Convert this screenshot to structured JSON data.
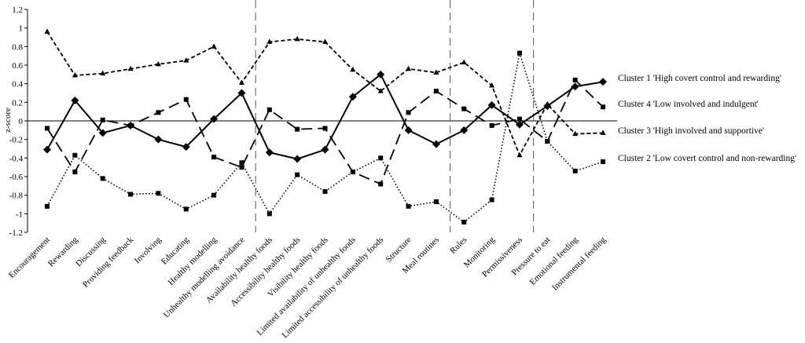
{
  "chart_data": {
    "type": "line",
    "ylabel": "z-score",
    "ylim": [
      -1.2,
      1.2
    ],
    "yticks": [
      1.2,
      1,
      0.8,
      0.6,
      0.4,
      0.2,
      0,
      -0.2,
      -0.4,
      -0.6,
      -0.8,
      -1,
      -1.2
    ],
    "categories": [
      "Encouragement",
      "Rewarding",
      "Discussing",
      "Providing feedback",
      "Involving",
      "Educating",
      "Healthy modelling",
      "Unhealthy modelling avoidance",
      "Availability healthy foods",
      "Accessibility healthy foods",
      "Visibility healthy foods",
      "Limited availability of unhealthy foods",
      "Limited accessibility of unhealthy foods",
      "Structure",
      "Meal routines",
      "Rules",
      "Monitoring",
      "Permissiveness",
      "Pressure to eat",
      "Emotional feeding",
      "Instrumental feeding"
    ],
    "group_separators_after": [
      "Unhealthy modelling avoidance",
      "Meal routines",
      "Permissiveness"
    ],
    "series": [
      {
        "name": "Cluster 1 'High covert control and rewarding'",
        "style": "solid",
        "marker": "diamond",
        "values": [
          -0.31,
          0.22,
          -0.13,
          -0.05,
          -0.2,
          -0.28,
          0.02,
          0.3,
          -0.34,
          -0.41,
          -0.31,
          0.26,
          0.5,
          -0.1,
          -0.25,
          -0.1,
          0.17,
          -0.04,
          0.16,
          0.37,
          0.42
        ]
      },
      {
        "name": "Cluster 4 'Low involved and indulgent'",
        "style": "long-dash",
        "marker": "square",
        "values": [
          -0.08,
          -0.55,
          0.01,
          -0.05,
          0.09,
          0.23,
          -0.39,
          -0.5,
          0.12,
          -0.09,
          -0.08,
          -0.55,
          -0.68,
          0.09,
          0.32,
          0.13,
          -0.05,
          0.02,
          -0.22,
          0.44,
          0.15
        ]
      },
      {
        "name": "Cluster 3 'High involved and supportive'",
        "style": "short-dash",
        "marker": "triangle",
        "values": [
          0.96,
          0.49,
          0.51,
          0.56,
          0.61,
          0.65,
          0.8,
          0.41,
          0.85,
          0.88,
          0.85,
          0.55,
          0.32,
          0.56,
          0.52,
          0.63,
          0.38,
          -0.37,
          0.18,
          -0.14,
          -0.13
        ]
      },
      {
        "name": "Cluster 2 'Low covert control and non-rewarding'",
        "style": "dotted",
        "marker": "square",
        "values": [
          -0.92,
          -0.37,
          -0.62,
          -0.79,
          -0.78,
          -0.95,
          -0.8,
          -0.45,
          -1.0,
          -0.58,
          -0.76,
          -0.55,
          -0.4,
          -0.92,
          -0.87,
          -1.09,
          -0.85,
          0.73,
          -0.22,
          -0.54,
          -0.44
        ]
      }
    ],
    "legend_order": [
      0,
      1,
      2,
      3
    ],
    "legend_position": "right",
    "grid": false,
    "colors": {
      "line": "#000000",
      "separator": "#555555"
    }
  }
}
